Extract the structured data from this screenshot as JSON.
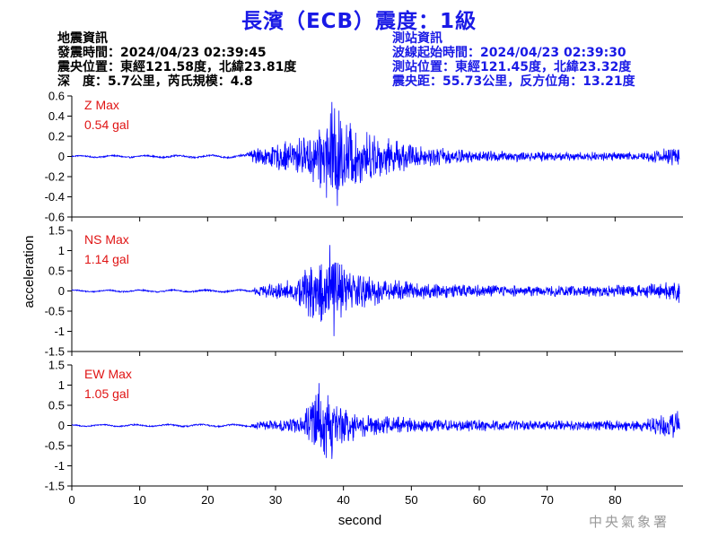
{
  "title": "長濱（ECB）震度：1級",
  "quake_info": {
    "heading": "地震資訊",
    "time": "發震時間：2024/04/23 02:39:45",
    "epicenter": "震央位置：東經121.58度，北緯23.81度",
    "depth_magnitude": "深　度：5.7公里，芮氏規模：4.8"
  },
  "station_info": {
    "heading": "測站資訊",
    "start_time": "波線起始時間：2024/04/23 02:39:30",
    "location": "測站位置：東經121.45度，北緯23.32度",
    "distance": "震央距：55.73公里，反方位角：13.21度"
  },
  "watermark": "中央氣象署",
  "colors": {
    "title": "#1a1ae6",
    "trace": "#0000ff",
    "max_label": "#e01414",
    "station_info": "#1a1ae6"
  },
  "chart_data": {
    "type": "line",
    "xlabel": "second",
    "ylabel": "acceleration",
    "xlim": [
      0,
      90
    ],
    "x_ticks": [
      0,
      10,
      20,
      30,
      40,
      50,
      60,
      70,
      80
    ],
    "sample_interval_s": 0.05,
    "panels": [
      {
        "name": "Z",
        "max_title": "Z Max",
        "max_value": "0.54 gal",
        "ylim": [
          -0.6,
          0.6
        ],
        "y_ticks": [
          -0.6,
          -0.4,
          -0.2,
          0,
          0.2,
          0.4,
          0.6
        ],
        "y_tick_labels": [
          "-0.6",
          "-0.4",
          "-0.2",
          "0",
          "0.2",
          "0.4",
          "0.6"
        ],
        "envelope": [
          [
            0,
            0.012
          ],
          [
            25.5,
            0.018
          ],
          [
            26.5,
            0.09
          ],
          [
            33,
            0.18
          ],
          [
            35,
            0.28
          ],
          [
            37.5,
            0.42
          ],
          [
            39,
            0.5
          ],
          [
            42,
            0.3
          ],
          [
            47,
            0.18
          ],
          [
            52,
            0.1
          ],
          [
            60,
            0.06
          ],
          [
            75,
            0.045
          ],
          [
            84,
            0.05
          ],
          [
            88,
            0.09
          ],
          [
            89.5,
            0.12
          ]
        ],
        "series": [
          {
            "x": 38.3,
            "y": 0.54
          },
          {
            "x": 39.1,
            "y": -0.49
          }
        ]
      },
      {
        "name": "NS",
        "max_title": "NS Max",
        "max_value": "1.14 gal",
        "ylim": [
          -1.5,
          1.5
        ],
        "y_ticks": [
          -1.5,
          -1,
          -0.5,
          0,
          0.5,
          1,
          1.5
        ],
        "y_tick_labels": [
          "-1.5",
          "-1",
          "-0.5",
          "0",
          "0.5",
          "1",
          "1.5"
        ],
        "envelope": [
          [
            0,
            0.03
          ],
          [
            26.5,
            0.04
          ],
          [
            27,
            0.15
          ],
          [
            33,
            0.3
          ],
          [
            35,
            0.7
          ],
          [
            37,
            1.0
          ],
          [
            39,
            0.8
          ],
          [
            42,
            0.5
          ],
          [
            47,
            0.3
          ],
          [
            55,
            0.18
          ],
          [
            70,
            0.14
          ],
          [
            84,
            0.16
          ],
          [
            88,
            0.25
          ],
          [
            89.5,
            0.35
          ]
        ],
        "series": [
          {
            "x": 38.0,
            "y": 1.14
          },
          {
            "x": 38.6,
            "y": -1.12
          }
        ]
      },
      {
        "name": "EW",
        "max_title": "EW Max",
        "max_value": "1.05 gal",
        "ylim": [
          -1.5,
          1.5
        ],
        "y_ticks": [
          -1.5,
          -1,
          -0.5,
          0,
          0.5,
          1,
          1.5
        ],
        "y_tick_labels": [
          "-1.5",
          "-1",
          "-0.5",
          "0",
          "0.5",
          "1",
          "1.5"
        ],
        "envelope": [
          [
            0,
            0.03
          ],
          [
            26.5,
            0.04
          ],
          [
            27,
            0.1
          ],
          [
            34,
            0.22
          ],
          [
            35,
            0.7
          ],
          [
            36.5,
            1.0
          ],
          [
            38,
            0.8
          ],
          [
            40,
            0.45
          ],
          [
            45,
            0.25
          ],
          [
            55,
            0.16
          ],
          [
            70,
            0.12
          ],
          [
            84,
            0.15
          ],
          [
            88,
            0.35
          ],
          [
            89.5,
            0.45
          ]
        ],
        "series": [
          {
            "x": 36.4,
            "y": 1.05
          },
          {
            "x": 38.3,
            "y": -0.83
          }
        ]
      }
    ]
  }
}
